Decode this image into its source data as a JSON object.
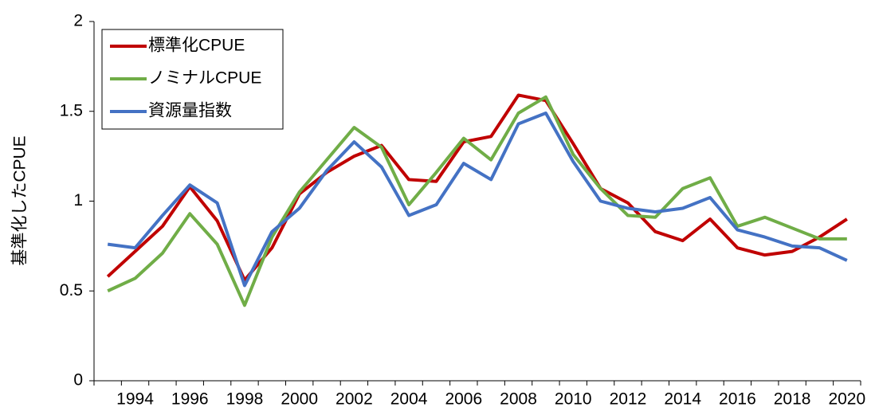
{
  "chart_data": {
    "type": "line",
    "y_label": "基準化したCPUE",
    "categories": [
      null,
      1994,
      null,
      1996,
      null,
      1998,
      null,
      2000,
      null,
      2002,
      null,
      2004,
      null,
      2006,
      null,
      2008,
      null,
      2010,
      null,
      2012,
      null,
      2014,
      null,
      2016,
      null,
      2018,
      null,
      2020
    ],
    "series": [
      {
        "name": "標準化CPUE",
        "color": "#c00000",
        "values": [
          0.58,
          0.72,
          0.86,
          1.08,
          0.89,
          0.56,
          0.74,
          1.04,
          1.16,
          1.25,
          1.31,
          1.12,
          1.11,
          1.33,
          1.36,
          1.59,
          1.56,
          1.32,
          1.07,
          0.99,
          0.83,
          0.78,
          0.9,
          0.74,
          0.7,
          0.72,
          0.8,
          0.9
        ]
      },
      {
        "name": "ノミナルCPUE",
        "color": "#70ad47",
        "values": [
          0.5,
          0.57,
          0.71,
          0.93,
          0.76,
          0.42,
          0.8,
          1.05,
          1.23,
          1.41,
          1.3,
          0.98,
          1.16,
          1.35,
          1.23,
          1.49,
          1.58,
          1.26,
          1.07,
          0.92,
          0.91,
          1.07,
          1.13,
          0.86,
          0.91,
          0.85,
          0.79,
          0.79
        ]
      },
      {
        "name": "資源量指数",
        "color": "#4472c4",
        "values": [
          0.76,
          0.74,
          0.92,
          1.09,
          0.99,
          0.53,
          0.83,
          0.96,
          1.17,
          1.33,
          1.19,
          0.92,
          0.98,
          1.21,
          1.12,
          1.43,
          1.49,
          1.22,
          1.0,
          0.96,
          0.94,
          0.96,
          1.02,
          0.84,
          0.8,
          0.75,
          0.74,
          0.67
        ]
      }
    ],
    "ylim": [
      0,
      2
    ],
    "yticks": [
      0,
      0.5,
      1,
      1.5,
      2
    ],
    "grid": false,
    "legend": "top-left"
  }
}
